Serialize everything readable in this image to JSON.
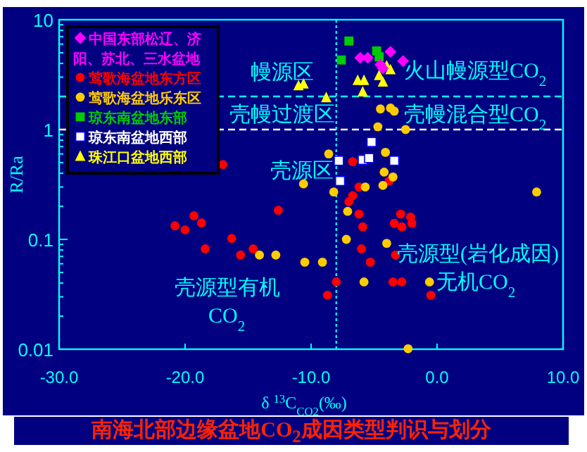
{
  "chart_data": {
    "type": "scatter",
    "title": "南海北部边缘盆地CO$_{2}$成因类型判识与划分",
    "xlabel": "δ $^{13}$C$_{CO2}$(‰)",
    "ylabel": "R/Ra",
    "xlim": [
      -30,
      10
    ],
    "ylim": [
      0.01,
      10
    ],
    "log": "y",
    "legend": "top left",
    "xticks": [
      {
        "value": -30,
        "label": "-30.0"
      },
      {
        "value": -20,
        "label": "-20.0"
      },
      {
        "value": -10,
        "label": "-10.0"
      },
      {
        "value": 0,
        "label": "0.0"
      },
      {
        "value": 10,
        "label": "10.0"
      }
    ],
    "yticks": [
      0.01,
      0.1,
      1,
      10
    ],
    "series": [
      {
        "name": "中国东部松辽、济阳、苏北、三水盆地",
        "color": "#ff00ff",
        "marker": "diamond",
        "x": [
          -6.1,
          -5.5,
          -3.7,
          -2.7,
          -4.3,
          -4.5
        ],
        "values": [
          4.5,
          4.5,
          5.1,
          4.2,
          3.6,
          3.9
        ]
      },
      {
        "name": "莺歌海盆地东方区",
        "color": "#ff0000",
        "marker": "circle",
        "x": [
          -17.0,
          -20.8,
          -20.0,
          -19.3,
          -18.7,
          -18.4,
          -16.3,
          -15.6,
          -14.6,
          -12.6,
          -6.7,
          -6.7,
          -7.0,
          -6.2,
          -5.9,
          -6.0,
          -5.3,
          -6.2,
          -3.8,
          -2.9,
          -2.1,
          -3.4,
          -2.8,
          -2.0,
          -3.3,
          -3.5,
          -2.8,
          -0.5,
          -8.7,
          -8.0
        ],
        "values": [
          0.48,
          0.133,
          0.122,
          0.164,
          0.141,
          0.082,
          0.102,
          0.072,
          0.082,
          0.184,
          0.51,
          0.25,
          0.22,
          0.17,
          0.13,
          0.082,
          0.062,
          0.3,
          0.34,
          0.17,
          0.16,
          0.14,
          0.13,
          0.14,
          0.072,
          0.041,
          0.041,
          0.031,
          0.031,
          0.041
        ]
      },
      {
        "name": "莺歌海盆地乐东区",
        "color": "#ffcc00",
        "marker": "circle",
        "x": [
          -14.1,
          -12.8,
          -10.6,
          -4.2,
          -3.5,
          -4.3,
          -5.7,
          -8.2,
          -7.1,
          -7.2,
          -4.0,
          -10.5,
          -9.1,
          -5.8,
          -0.6,
          7.9,
          -2.3,
          -4.5,
          -3.7,
          -3.4,
          -4.7,
          -2.5,
          -8.6,
          -4.1
        ],
        "values": [
          0.072,
          0.072,
          0.32,
          0.41,
          0.37,
          0.31,
          0.3,
          0.27,
          0.18,
          0.1,
          0.092,
          0.062,
          0.062,
          0.041,
          0.041,
          0.27,
          0.0101,
          1.54,
          1.57,
          1.47,
          1.06,
          1.0,
          0.6,
          0.62
        ]
      },
      {
        "name": "琼东南盆地东部",
        "color": "#00cc00",
        "marker": "square",
        "x": [
          -7.0,
          -7.6,
          -4.8,
          -4.6
        ],
        "values": [
          6.4,
          4.3,
          5.2,
          4.6
        ]
      },
      {
        "name": "琼东南盆地西部",
        "color": "#ffffff",
        "marker": "square",
        "x": [
          -5.2,
          -5.9,
          -5.4,
          -3.4,
          -7.8,
          -7.7
        ],
        "values": [
          0.77,
          0.53,
          0.55,
          0.52,
          0.52,
          0.34
        ]
      },
      {
        "name": "珠江口盆地西部",
        "color": "#ffff00",
        "marker": "triangle",
        "x": [
          -10.6,
          -11.0,
          -8.8,
          -6.3,
          -5.8,
          -5.9,
          -4.6,
          -4.3,
          -4.0,
          -3.7
        ],
        "values": [
          2.6,
          2.5,
          1.95,
          2.8,
          2.8,
          2.2,
          3.1,
          2.7,
          3.8,
          3.5
        ]
      }
    ],
    "ref_lines": [
      {
        "axis": "y",
        "value": 2,
        "color": "#00ffff",
        "line_style": "dashed"
      },
      {
        "axis": "y",
        "value": 1,
        "color": "#ffffff",
        "line_style": "dashed"
      },
      {
        "axis": "x",
        "value": -8,
        "color": "#00ffff",
        "line_style": "dotted"
      }
    ],
    "annotations": [
      "幔源区",
      "火山幔源型CO$_{2}$",
      "壳幔过渡区",
      "壳幔混合型CO$_{2}$",
      "壳源区",
      "壳源型(岩化成因)",
      "无机CO$_{2}$",
      "壳源型有机",
      "CO$_{2}$"
    ]
  }
}
